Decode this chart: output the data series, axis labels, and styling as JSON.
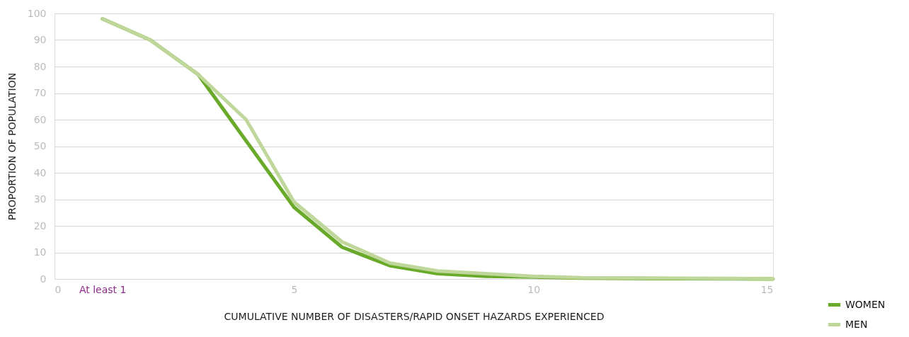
{
  "chart_data": {
    "type": "line",
    "xlabel": "CUMULATIVE NUMBER OF DISASTERS/RAPID ONSET HAZARDS EXPERIENCED",
    "ylabel": "PROPORTION OF POPULATION",
    "x": [
      1,
      2,
      3,
      4,
      5,
      6,
      7,
      8,
      9,
      10,
      11,
      12,
      13,
      14,
      15
    ],
    "series": [
      {
        "name": "WOMEN",
        "color": "#6aaa2a",
        "values": [
          98,
          90,
          77,
          52,
          27,
          12,
          5,
          2,
          1,
          0.7,
          0.3,
          0.2,
          0.1,
          0.1,
          0
        ]
      },
      {
        "name": "MEN",
        "color": "#bfd79a",
        "values": [
          98,
          90,
          77,
          60,
          29,
          14,
          6,
          3,
          2,
          1,
          0.5,
          0.4,
          0.3,
          0.2,
          0.1
        ]
      }
    ],
    "xlim": [
      0,
      15
    ],
    "xticks": [
      0,
      {
        "value": 1,
        "label": "At least 1"
      },
      5,
      10,
      15
    ],
    "ylim": [
      0,
      100
    ],
    "yticks": [
      0,
      10,
      20,
      30,
      40,
      50,
      60,
      70,
      80,
      90,
      100
    ],
    "grid": "y",
    "legend": "bottom right",
    "marker": "none",
    "line_style": "solid"
  }
}
